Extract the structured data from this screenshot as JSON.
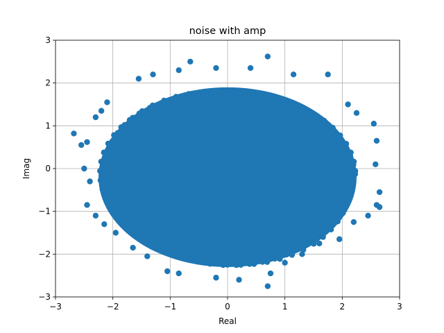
{
  "chart_data": {
    "type": "scatter",
    "title": "noise with amp",
    "xlabel": "Real",
    "ylabel": "Imag",
    "xlim": [
      -3,
      3
    ],
    "ylim": [
      -3,
      3
    ],
    "xticks": [
      -3,
      -2,
      -1,
      0,
      1,
      2,
      3
    ],
    "yticks": [
      -3,
      -2,
      -1,
      0,
      1,
      2,
      3
    ],
    "xtick_labels": [
      "−3",
      "−2",
      "−1",
      "0",
      "1",
      "2",
      "3"
    ],
    "ytick_labels": [
      "−3",
      "−2",
      "−1",
      "0",
      "1",
      "2",
      "3"
    ],
    "grid": true,
    "marker_color": "#1f77b4",
    "cloud": {
      "shape": "ellipse",
      "center": [
        0,
        -0.2
      ],
      "semi_axis_x": 2.25,
      "semi_axis_y": 2.1
    },
    "outliers": [
      [
        -2.68,
        0.82
      ],
      [
        -2.55,
        0.55
      ],
      [
        -2.45,
        0.62
      ],
      [
        -2.5,
        0.0
      ],
      [
        -2.4,
        -0.3
      ],
      [
        -2.45,
        -0.85
      ],
      [
        -2.3,
        -1.1
      ],
      [
        -2.2,
        1.35
      ],
      [
        -2.3,
        1.2
      ],
      [
        -2.1,
        1.55
      ],
      [
        -1.55,
        2.1
      ],
      [
        -1.3,
        2.2
      ],
      [
        -0.85,
        2.3
      ],
      [
        -0.65,
        2.5
      ],
      [
        -0.2,
        2.35
      ],
      [
        0.4,
        2.35
      ],
      [
        0.7,
        2.62
      ],
      [
        1.15,
        2.2
      ],
      [
        1.75,
        2.2
      ],
      [
        2.1,
        1.5
      ],
      [
        2.25,
        1.3
      ],
      [
        2.55,
        1.05
      ],
      [
        2.6,
        0.65
      ],
      [
        2.58,
        0.1
      ],
      [
        2.65,
        -0.55
      ],
      [
        2.6,
        -0.85
      ],
      [
        2.65,
        -0.9
      ],
      [
        2.45,
        -1.1
      ],
      [
        2.2,
        -1.25
      ],
      [
        1.95,
        -1.65
      ],
      [
        1.6,
        -1.75
      ],
      [
        1.3,
        -2.0
      ],
      [
        1.0,
        -2.2
      ],
      [
        0.75,
        -2.45
      ],
      [
        0.7,
        -2.75
      ],
      [
        0.2,
        -2.6
      ],
      [
        -0.2,
        -2.55
      ],
      [
        -0.85,
        -2.45
      ],
      [
        -1.05,
        -2.4
      ],
      [
        -1.4,
        -2.05
      ],
      [
        -1.65,
        -1.85
      ],
      [
        -1.95,
        -1.5
      ],
      [
        -2.15,
        -1.3
      ]
    ]
  }
}
